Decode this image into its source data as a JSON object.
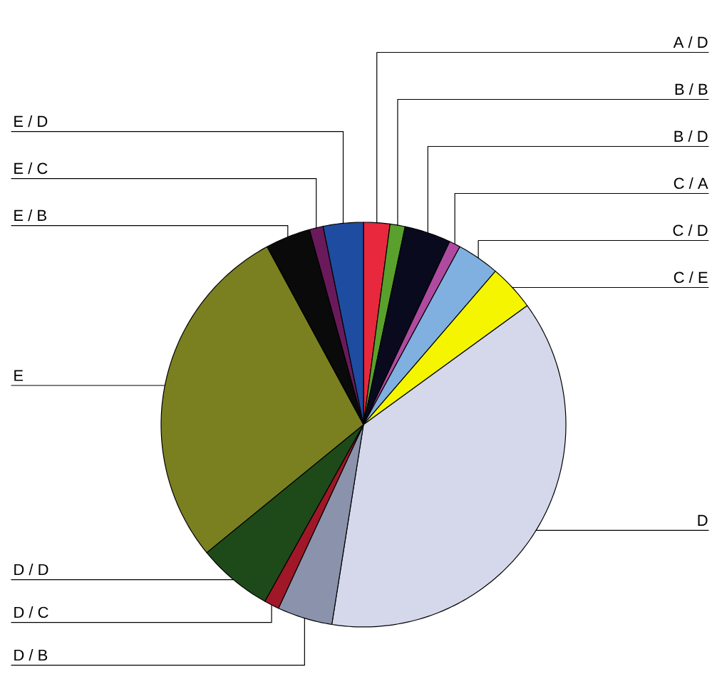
{
  "chart_data": {
    "type": "pie",
    "categories": [
      "A / D",
      "B / B",
      "B / D",
      "C / A",
      "C / D",
      "C / E",
      "D",
      "D / B",
      "D / C",
      "D / D",
      "E",
      "E / B",
      "E / C",
      "E / D"
    ],
    "values": [
      2.1,
      1.2,
      3.7,
      0.9,
      3.4,
      3.7,
      37.5,
      4.4,
      1.2,
      6.0,
      28.0,
      3.6,
      1.1,
      3.2
    ],
    "colors": [
      "#e8283c",
      "#5aa02c",
      "#0a0a1e",
      "#b04aa0",
      "#7fb0e0",
      "#f5f500",
      "#d4d8ea",
      "#8a92ac",
      "#a01828",
      "#1e4a1a",
      "#7a8020",
      "#0a0a0a",
      "#6a1a5a",
      "#1e4ca0"
    ]
  }
}
